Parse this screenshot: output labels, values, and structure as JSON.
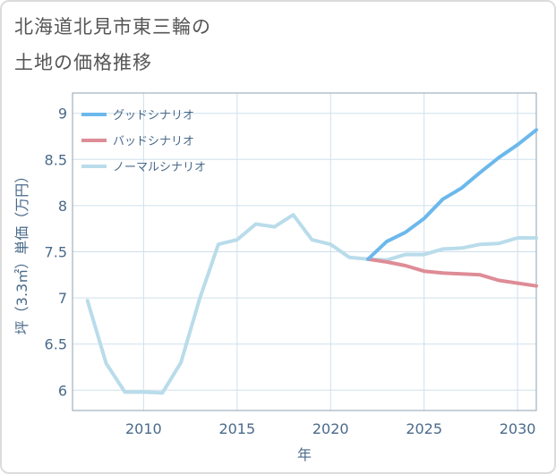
{
  "title_line1": "北海道北見市東三輪の",
  "title_line2": "土地の価格推移",
  "chart_data": {
    "type": "line",
    "xlabel": "年",
    "ylabel": "坪（3.3㎡）単価（万円）",
    "xlim": [
      2006.2,
      2031
    ],
    "ylim": [
      5.78,
      9.22
    ],
    "xticks": [
      2010,
      2015,
      2020,
      2025,
      2030
    ],
    "xtick_labels": [
      "2010",
      "2015",
      "2020",
      "2025",
      "2030"
    ],
    "yticks": [
      6,
      6.5,
      7,
      7.5,
      8,
      8.5,
      9
    ],
    "ytick_labels": [
      "6",
      "6.5",
      "7",
      "7.5",
      "8",
      "8.5",
      "9"
    ],
    "grid": true,
    "legend_position": "top-left",
    "series": [
      {
        "name": "グッドシナリオ",
        "color": "#6cb8ec",
        "x": [
          2022,
          2023,
          2024,
          2025,
          2026,
          2027,
          2028,
          2029,
          2030,
          2031
        ],
        "y": [
          7.42,
          7.61,
          7.71,
          7.86,
          8.07,
          8.19,
          8.36,
          8.52,
          8.66,
          8.82
        ]
      },
      {
        "name": "バッドシナリオ",
        "color": "#de8c96",
        "x": [
          2022,
          2023,
          2024,
          2025,
          2026,
          2027,
          2028,
          2029,
          2030,
          2031
        ],
        "y": [
          7.42,
          7.39,
          7.35,
          7.29,
          7.27,
          7.26,
          7.25,
          7.19,
          7.16,
          7.13
        ]
      },
      {
        "name": "ノーマルシナリオ",
        "color": "#b9dcea",
        "x": [
          2007,
          2008,
          2009,
          2010,
          2011,
          2012,
          2013,
          2014,
          2015,
          2016,
          2017,
          2018,
          2019,
          2020,
          2021,
          2022,
          2023,
          2024,
          2025,
          2026,
          2027,
          2028,
          2029,
          2030,
          2031
        ],
        "y": [
          6.97,
          6.29,
          5.98,
          5.98,
          5.97,
          6.3,
          6.99,
          7.58,
          7.63,
          7.8,
          7.77,
          7.9,
          7.63,
          7.58,
          7.44,
          7.42,
          7.41,
          7.47,
          7.47,
          7.53,
          7.54,
          7.58,
          7.59,
          7.65,
          7.65
        ]
      }
    ]
  }
}
